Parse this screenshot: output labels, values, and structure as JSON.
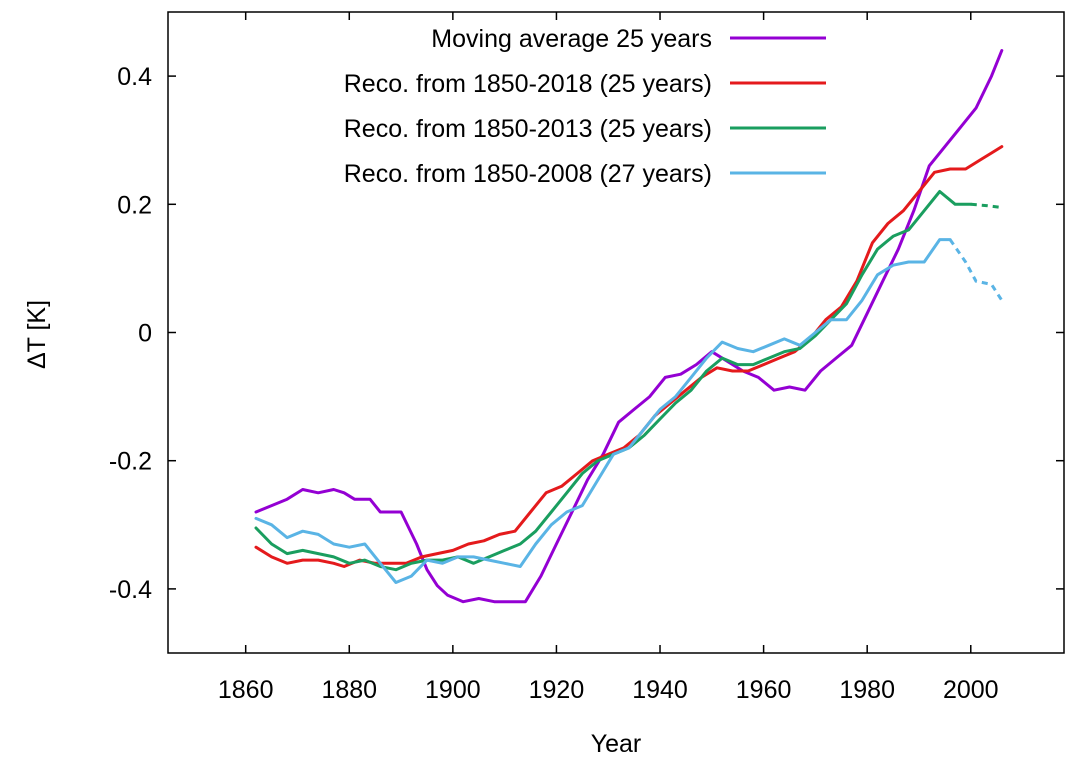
{
  "chart_data": {
    "type": "line",
    "title": "",
    "xlabel": "Year",
    "ylabel": "ΔT [K]",
    "xlim": [
      1845,
      2018
    ],
    "ylim": [
      -0.5,
      0.5
    ],
    "xticks": [
      1860,
      1880,
      1900,
      1920,
      1940,
      1960,
      1980,
      2000
    ],
    "yticks": [
      -0.4,
      -0.2,
      0,
      0.2,
      0.4
    ],
    "yticklabels": [
      "-0.4",
      "-0.2",
      "0",
      "0.2",
      "0.4"
    ],
    "grid": false,
    "legend_position": "top-right",
    "series": [
      {
        "name": "Moving average 25 years",
        "color": "#9400d3",
        "x": [
          1862,
          1865,
          1868,
          1871,
          1874,
          1877,
          1879,
          1881,
          1884,
          1886,
          1888,
          1890,
          1893,
          1895,
          1897,
          1899,
          1902,
          1905,
          1908,
          1911,
          1914,
          1917,
          1920,
          1923,
          1926,
          1929,
          1932,
          1935,
          1938,
          1941,
          1944,
          1947,
          1950,
          1953,
          1956,
          1959,
          1962,
          1965,
          1968,
          1971,
          1974,
          1977,
          1980,
          1983,
          1986,
          1989,
          1992,
          1995,
          1998,
          2001,
          2004,
          2006
        ],
        "y": [
          -0.28,
          -0.27,
          -0.26,
          -0.245,
          -0.25,
          -0.245,
          -0.25,
          -0.26,
          -0.26,
          -0.28,
          -0.28,
          -0.28,
          -0.33,
          -0.37,
          -0.395,
          -0.41,
          -0.42,
          -0.415,
          -0.42,
          -0.42,
          -0.42,
          -0.38,
          -0.33,
          -0.28,
          -0.23,
          -0.19,
          -0.14,
          -0.12,
          -0.1,
          -0.07,
          -0.065,
          -0.05,
          -0.03,
          -0.045,
          -0.06,
          -0.07,
          -0.09,
          -0.085,
          -0.09,
          -0.06,
          -0.04,
          -0.02,
          0.03,
          0.08,
          0.13,
          0.19,
          0.26,
          0.29,
          0.32,
          0.35,
          0.4,
          0.44
        ]
      },
      {
        "name": "Reco. from 1850-2018 (25 years)",
        "color": "#e41a1c",
        "x": [
          1862,
          1865,
          1868,
          1871,
          1874,
          1877,
          1879,
          1882,
          1885,
          1888,
          1891,
          1894,
          1897,
          1900,
          1903,
          1906,
          1909,
          1912,
          1915,
          1918,
          1921,
          1924,
          1927,
          1930,
          1933,
          1936,
          1939,
          1942,
          1945,
          1948,
          1951,
          1954,
          1957,
          1960,
          1963,
          1966,
          1969,
          1972,
          1975,
          1978,
          1981,
          1984,
          1987,
          1990,
          1993,
          1996,
          1999,
          2002,
          2004,
          2006
        ],
        "y": [
          -0.335,
          -0.35,
          -0.36,
          -0.355,
          -0.355,
          -0.36,
          -0.365,
          -0.355,
          -0.36,
          -0.36,
          -0.36,
          -0.35,
          -0.345,
          -0.34,
          -0.33,
          -0.325,
          -0.315,
          -0.31,
          -0.28,
          -0.25,
          -0.24,
          -0.22,
          -0.2,
          -0.19,
          -0.18,
          -0.16,
          -0.13,
          -0.11,
          -0.09,
          -0.07,
          -0.055,
          -0.06,
          -0.06,
          -0.05,
          -0.04,
          -0.03,
          -0.01,
          0.02,
          0.04,
          0.08,
          0.14,
          0.17,
          0.19,
          0.22,
          0.25,
          0.255,
          0.255,
          0.27,
          0.28,
          0.29
        ]
      },
      {
        "name": "Reco. from 1850-2013 (25 years)",
        "color": "#1a9e5f",
        "x": [
          1862,
          1865,
          1868,
          1871,
          1874,
          1877,
          1880,
          1883,
          1886,
          1889,
          1892,
          1895,
          1898,
          1901,
          1904,
          1907,
          1910,
          1913,
          1916,
          1919,
          1922,
          1925,
          1928,
          1931,
          1934,
          1937,
          1940,
          1943,
          1946,
          1949,
          1952,
          1955,
          1958,
          1961,
          1964,
          1967,
          1970,
          1973,
          1976,
          1979,
          1982,
          1985,
          1988,
          1991,
          1994,
          1997,
          2000
        ],
        "y": [
          -0.305,
          -0.33,
          -0.345,
          -0.34,
          -0.345,
          -0.35,
          -0.36,
          -0.355,
          -0.365,
          -0.37,
          -0.36,
          -0.355,
          -0.355,
          -0.35,
          -0.36,
          -0.35,
          -0.34,
          -0.33,
          -0.31,
          -0.28,
          -0.25,
          -0.22,
          -0.2,
          -0.19,
          -0.18,
          -0.16,
          -0.135,
          -0.11,
          -0.09,
          -0.06,
          -0.04,
          -0.05,
          -0.05,
          -0.04,
          -0.03,
          -0.025,
          -0.005,
          0.02,
          0.045,
          0.09,
          0.13,
          0.15,
          0.16,
          0.19,
          0.22,
          0.2,
          0.2
        ]
      },
      {
        "name": "Reco. from 1850-2008 (27 years)",
        "color": "#5ab4e5",
        "x": [
          1862,
          1865,
          1868,
          1871,
          1874,
          1877,
          1880,
          1883,
          1886,
          1889,
          1892,
          1895,
          1898,
          1901,
          1904,
          1907,
          1910,
          1913,
          1916,
          1919,
          1922,
          1925,
          1928,
          1931,
          1934,
          1937,
          1940,
          1943,
          1946,
          1949,
          1952,
          1955,
          1958,
          1961,
          1964,
          1967,
          1970,
          1973,
          1976,
          1979,
          1982,
          1985,
          1988,
          1991,
          1994,
          1996
        ],
        "y": [
          -0.29,
          -0.3,
          -0.32,
          -0.31,
          -0.315,
          -0.33,
          -0.335,
          -0.33,
          -0.36,
          -0.39,
          -0.38,
          -0.355,
          -0.36,
          -0.35,
          -0.35,
          -0.355,
          -0.36,
          -0.365,
          -0.33,
          -0.3,
          -0.28,
          -0.27,
          -0.23,
          -0.19,
          -0.18,
          -0.15,
          -0.12,
          -0.1,
          -0.07,
          -0.04,
          -0.015,
          -0.025,
          -0.03,
          -0.02,
          -0.01,
          -0.02,
          0.0,
          0.02,
          0.02,
          0.05,
          0.09,
          0.105,
          0.11,
          0.11,
          0.145,
          0.145
        ]
      }
    ],
    "dashed_extensions": [
      {
        "series": "Reco. from 1850-2013 (25 years)",
        "x": [
          2000,
          2003,
          2006
        ],
        "y": [
          0.2,
          0.198,
          0.195
        ]
      },
      {
        "series": "Reco. from 1850-2008 (27 years)",
        "x": [
          1996,
          1999,
          2001,
          2004,
          2006
        ],
        "y": [
          0.145,
          0.11,
          0.08,
          0.075,
          0.05
        ]
      }
    ]
  }
}
